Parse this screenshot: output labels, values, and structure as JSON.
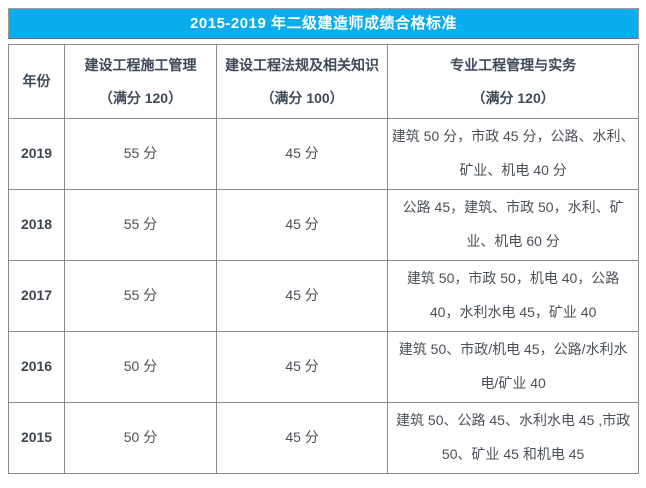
{
  "title_bar": {
    "text": "2015-2019 年二级建造师成绩合格标准"
  },
  "colors": {
    "title_bg": "#09ACEC",
    "title_text": "#FFFFFF",
    "border": "#8A8A8A",
    "header_text": "#3E4A5A",
    "body_text": "#4B5158"
  },
  "table": {
    "columns": [
      {
        "label": "年份",
        "sub": ""
      },
      {
        "label": "建设工程施工管理",
        "sub": "（满分 120）"
      },
      {
        "label": "建设工程法规及相关知识",
        "sub": "（满分 100）"
      },
      {
        "label": "专业工程管理与实务",
        "sub": "（满分 120）"
      }
    ],
    "rows": [
      {
        "year": "2019",
        "management": "55 分",
        "law": "45 分",
        "practice": "建筑 50 分，市政 45 分，公路、水利、矿业、机电 40 分"
      },
      {
        "year": "2018",
        "management": "55 分",
        "law": "45 分",
        "practice": "公路 45，建筑、市政 50，水利、矿业、机电 60 分"
      },
      {
        "year": "2017",
        "management": "55 分",
        "law": "45 分",
        "practice": "建筑 50，市政 50，机电 40，公路 40，水利水电 45，矿业 40"
      },
      {
        "year": "2016",
        "management": "50 分",
        "law": "45 分",
        "practice": "建筑 50、市政/机电 45，公路/水利水电/矿业 40"
      },
      {
        "year": "2015",
        "management": "50 分",
        "law": "45 分",
        "practice": "建筑 50、公路 45、水利水电 45 ,市政 50、矿业 45 和机电 45"
      }
    ]
  },
  "chart_data": {
    "type": "table",
    "title": "2015-2019 年二级建造师成绩合格标准",
    "columns": [
      "年份",
      "建设工程施工管理（满分 120）",
      "建设工程法规及相关知识（满分 100）",
      "专业工程管理与实务（满分 120）"
    ],
    "rows": [
      [
        "2019",
        "55 分",
        "45 分",
        "建筑 50 分，市政 45 分，公路、水利、矿业、机电 40 分"
      ],
      [
        "2018",
        "55 分",
        "45 分",
        "公路 45，建筑、市政 50，水利、矿业、机电 60 分"
      ],
      [
        "2017",
        "55 分",
        "45 分",
        "建筑 50，市政 50，机电 40，公路 40，水利水电 45，矿业 40"
      ],
      [
        "2016",
        "50 分",
        "45 分",
        "建筑 50、市政/机电 45，公路/水利水电/矿业 40"
      ],
      [
        "2015",
        "50 分",
        "45 分",
        "建筑 50、公路 45、水利水电 45 ,市政 50、矿业 45 和机电 45"
      ]
    ]
  }
}
